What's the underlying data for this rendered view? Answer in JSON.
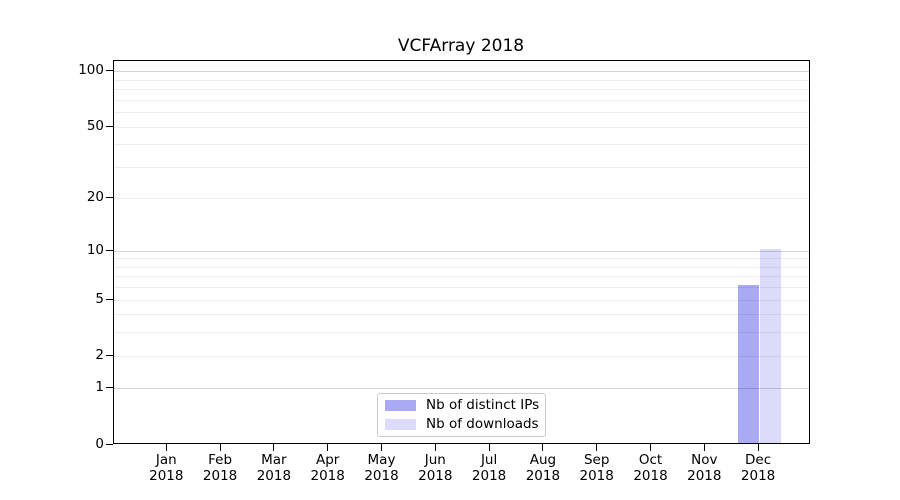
{
  "figure": {
    "title": "VCFArray 2018",
    "background": "#ffffff"
  },
  "chart_data": {
    "type": "bar",
    "title": "VCFArray 2018",
    "categories": [
      "Jan",
      "Feb",
      "Mar",
      "Apr",
      "May",
      "Jun",
      "Jul",
      "Aug",
      "Sep",
      "Oct",
      "Nov",
      "Dec"
    ],
    "category_year": "2018",
    "series": [
      {
        "name": "Nb of distinct IPs",
        "color": "#a9a9f6",
        "values": [
          0,
          0,
          0,
          0,
          0,
          0,
          0,
          0,
          0,
          0,
          0,
          6
        ]
      },
      {
        "name": "Nb of downloads",
        "color": "#dcdcfa",
        "values": [
          0,
          0,
          0,
          0,
          0,
          0,
          0,
          0,
          0,
          0,
          0,
          10
        ]
      }
    ],
    "xlabel": "",
    "ylabel": "",
    "yscale": "log10(value+1)",
    "ylim": [
      0,
      112
    ],
    "ytick_labels": [
      0,
      1,
      2,
      5,
      10,
      20,
      50,
      100
    ],
    "major_gridlines": [
      1,
      10,
      100
    ],
    "minor_gridlines": [
      2,
      3,
      4,
      5,
      6,
      7,
      8,
      9,
      20,
      30,
      40,
      50,
      60,
      70,
      80,
      90
    ],
    "grid": true,
    "legend_position": "inside-bottom-center",
    "legend_entries": [
      "Nb of distinct IPs",
      "Nb of downloads"
    ]
  },
  "colors": {
    "axis": "#000000",
    "major_grid": "rgba(0,0,0,0.17)",
    "minor_grid": "rgba(0,0,0,0.075)",
    "legend_border": "#cccccc"
  }
}
